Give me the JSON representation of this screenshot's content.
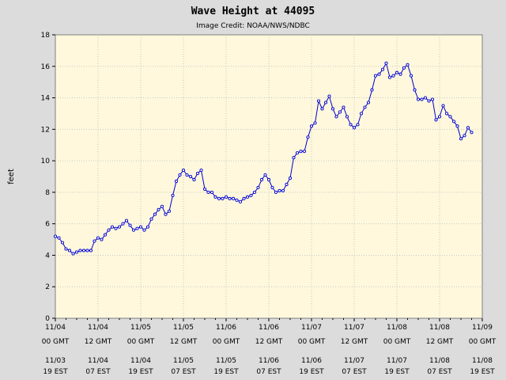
{
  "chart_data": {
    "type": "line",
    "title": "Wave Height at 44095",
    "subtitle": "Image Credit: NOAA/NWS/NDBC",
    "ylabel": "feet",
    "xlabel": "",
    "ylim": [
      0,
      18
    ],
    "yticks": [
      0,
      2,
      4,
      6,
      8,
      10,
      12,
      14,
      16,
      18
    ],
    "x_range_hours": [
      0,
      120
    ],
    "grid": true,
    "legend": "none",
    "colors": {
      "plot_bg": "#fff8dc",
      "page_bg": "#dcdcdc",
      "line": "#0000cc",
      "grid": "#c8c8c8"
    },
    "xticks": [
      {
        "hour": 0,
        "gmt": [
          "11/04",
          "00 GMT"
        ],
        "est": [
          "11/03",
          "19 EST"
        ]
      },
      {
        "hour": 12,
        "gmt": [
          "11/04",
          "12 GMT"
        ],
        "est": [
          "11/04",
          "07 EST"
        ]
      },
      {
        "hour": 24,
        "gmt": [
          "11/05",
          "00 GMT"
        ],
        "est": [
          "11/04",
          "19 EST"
        ]
      },
      {
        "hour": 36,
        "gmt": [
          "11/05",
          "12 GMT"
        ],
        "est": [
          "11/05",
          "07 EST"
        ]
      },
      {
        "hour": 48,
        "gmt": [
          "11/06",
          "00 GMT"
        ],
        "est": [
          "11/05",
          "19 EST"
        ]
      },
      {
        "hour": 60,
        "gmt": [
          "11/06",
          "12 GMT"
        ],
        "est": [
          "11/06",
          "07 EST"
        ]
      },
      {
        "hour": 72,
        "gmt": [
          "11/07",
          "00 GMT"
        ],
        "est": [
          "11/06",
          "19 EST"
        ]
      },
      {
        "hour": 84,
        "gmt": [
          "11/07",
          "12 GMT"
        ],
        "est": [
          "11/07",
          "07 EST"
        ]
      },
      {
        "hour": 96,
        "gmt": [
          "11/08",
          "00 GMT"
        ],
        "est": [
          "11/07",
          "19 EST"
        ]
      },
      {
        "hour": 108,
        "gmt": [
          "11/08",
          "12 GMT"
        ],
        "est": [
          "11/08",
          "07 EST"
        ]
      },
      {
        "hour": 120,
        "gmt": [
          "11/09",
          "00 GMT"
        ],
        "est": [
          "11/08",
          "19 EST"
        ]
      }
    ],
    "series": [
      {
        "hours": [
          0,
          1,
          2,
          3,
          4,
          5,
          6,
          7,
          8,
          9,
          10,
          11,
          12,
          13,
          14,
          15,
          16,
          17,
          18,
          19,
          20,
          21,
          22,
          23,
          24,
          25,
          26,
          27,
          28,
          29,
          30,
          31,
          32,
          33,
          34,
          35,
          36,
          37,
          38,
          39,
          40,
          41,
          42,
          43,
          44,
          45,
          46,
          47,
          48,
          49,
          50,
          51,
          52,
          53,
          54,
          55,
          56,
          57,
          58,
          59,
          60,
          61,
          62,
          63,
          64,
          65,
          66,
          67,
          68,
          69,
          70,
          71,
          72,
          73,
          74,
          75,
          76,
          77,
          78,
          79,
          80,
          81,
          82,
          83,
          84,
          85,
          86,
          87,
          88,
          89,
          90,
          91,
          92,
          93,
          94,
          95,
          96,
          97,
          98,
          99,
          100,
          101,
          102,
          103,
          104,
          105,
          106,
          107,
          108,
          109,
          110,
          111,
          112,
          113,
          114,
          115,
          116,
          117
        ],
        "values": [
          5.2,
          5.1,
          4.8,
          4.4,
          4.3,
          4.1,
          4.2,
          4.3,
          4.3,
          4.3,
          4.3,
          4.9,
          5.1,
          5.0,
          5.3,
          5.6,
          5.8,
          5.7,
          5.8,
          6.0,
          6.2,
          5.9,
          5.6,
          5.7,
          5.8,
          5.6,
          5.8,
          6.3,
          6.6,
          6.9,
          7.1,
          6.6,
          6.8,
          7.8,
          8.7,
          9.1,
          9.4,
          9.1,
          9.0,
          8.8,
          9.2,
          9.4,
          8.2,
          8.0,
          8.0,
          7.7,
          7.6,
          7.6,
          7.7,
          7.6,
          7.6,
          7.5,
          7.4,
          7.6,
          7.7,
          7.8,
          8.0,
          8.3,
          8.8,
          9.1,
          8.8,
          8.3,
          8.0,
          8.1,
          8.1,
          8.5,
          8.9,
          10.2,
          10.5,
          10.6,
          10.6,
          11.5,
          12.2,
          12.4,
          13.8,
          13.3,
          13.7,
          14.1,
          13.3,
          12.8,
          13.1,
          13.4,
          12.8,
          12.3,
          12.1,
          12.3,
          13.0,
          13.4,
          13.7,
          14.5,
          15.4,
          15.5,
          15.8,
          16.2,
          15.3,
          15.4,
          15.6,
          15.5,
          15.9,
          16.1,
          15.4,
          14.5,
          13.9,
          13.9,
          14.0,
          13.8,
          13.9,
          12.6,
          12.8,
          13.5,
          13.0,
          12.8,
          12.5,
          12.2,
          11.4,
          11.6,
          12.1,
          11.8
        ]
      }
    ]
  }
}
